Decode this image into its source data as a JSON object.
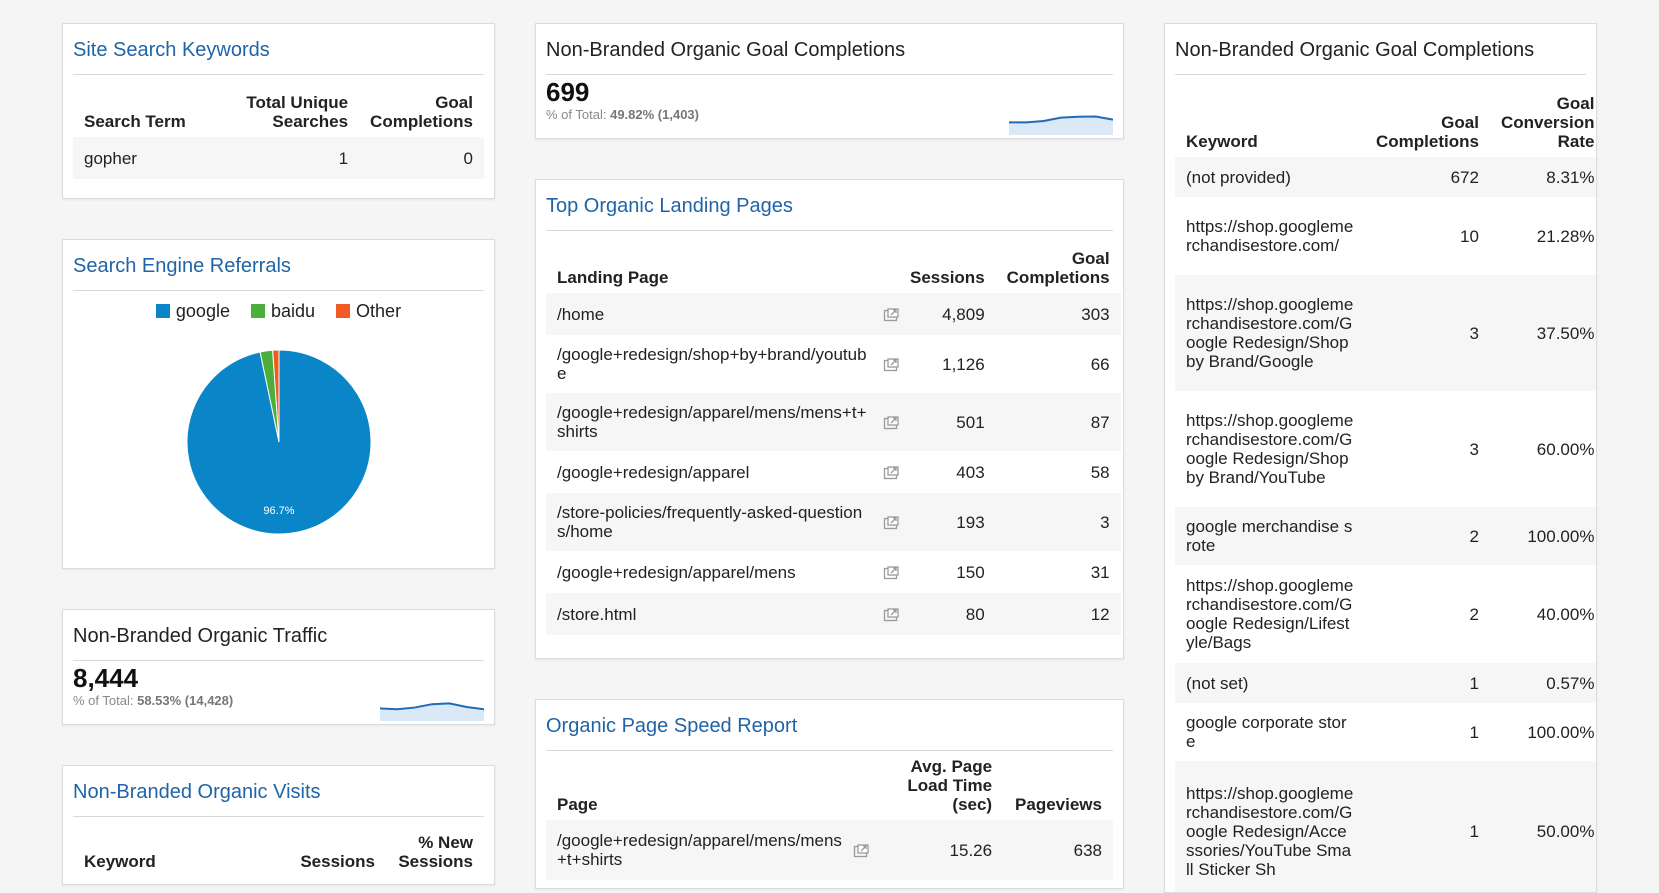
{
  "colors": {
    "title_blue": "#1f64a8",
    "google": "#0a86c8",
    "baidu": "#4caf3c",
    "other": "#f05a24",
    "spark_line": "#1f6cb5",
    "spark_fill": "#dbe8f6"
  },
  "site_search": {
    "title": "Site Search Keywords",
    "headers": [
      "Search Term",
      "Total Unique Searches",
      "Goal Completions"
    ],
    "rows": [
      {
        "term": "gopher",
        "unique": "1",
        "goals": "0"
      }
    ]
  },
  "search_engine": {
    "title": "Search Engine Referrals",
    "legend": [
      {
        "label": "google",
        "color": "#0a86c8"
      },
      {
        "label": "baidu",
        "color": "#4caf3c"
      },
      {
        "label": "Other",
        "color": "#f05a24"
      }
    ],
    "chart_data": {
      "type": "pie",
      "categories": [
        "google",
        "baidu",
        "Other"
      ],
      "values": [
        96.7,
        2.2,
        1.1
      ],
      "slice_labels": [
        "96.7%",
        "",
        ""
      ]
    }
  },
  "nb_traffic": {
    "title": "Non-Branded Organic Traffic",
    "value": "8,444",
    "pct_label": "% of Total:",
    "pct": "58.53% (14,428)",
    "spark": [
      0.45,
      0.42,
      0.48,
      0.6,
      0.63,
      0.5,
      0.42
    ]
  },
  "nb_visits": {
    "title": "Non-Branded Organic Visits",
    "headers": [
      "Keyword",
      "Sessions",
      "% New Sessions"
    ]
  },
  "nb_goal_small": {
    "title": "Non-Branded Organic Goal Completions",
    "value": "699",
    "pct_label": "% of Total:",
    "pct": "49.82% (1,403)",
    "spark": [
      0.45,
      0.45,
      0.5,
      0.62,
      0.65,
      0.66,
      0.55
    ]
  },
  "landing": {
    "title": "Top Organic Landing Pages",
    "headers": [
      "Landing Page",
      "Sessions",
      "Goal Completions"
    ],
    "rows": [
      {
        "page": "/home",
        "sessions": "4,809",
        "goals": "303"
      },
      {
        "page": "/google+redesign/shop+by+brand/youtube",
        "sessions": "1,126",
        "goals": "66"
      },
      {
        "page": "/google+redesign/apparel/mens/mens+t+shirts",
        "sessions": "501",
        "goals": "87"
      },
      {
        "page": "/google+redesign/apparel",
        "sessions": "403",
        "goals": "58"
      },
      {
        "page": "/store-policies/frequently-asked-questions/home",
        "sessions": "193",
        "goals": "3"
      },
      {
        "page": "/google+redesign/apparel/mens",
        "sessions": "150",
        "goals": "31"
      },
      {
        "page": "/store.html",
        "sessions": "80",
        "goals": "12"
      }
    ]
  },
  "speed": {
    "title": "Organic Page Speed Report",
    "headers": [
      "Page",
      "Avg. Page Load Time (sec)",
      "Pageviews"
    ],
    "rows": [
      {
        "page": "/google+redesign/apparel/mens/mens+t+shirts",
        "time": "15.26",
        "views": "638"
      }
    ]
  },
  "nb_goal_table": {
    "title": "Non-Branded Organic Goal Completions",
    "headers": [
      "Keyword",
      "Goal Completions",
      "Goal Conversion Rate"
    ],
    "rows": [
      {
        "kw": "(not provided)",
        "goals": "672",
        "rate": "8.31%"
      },
      {
        "kw": "https://shop.googlemerchandisestore.com/",
        "goals": "10",
        "rate": "21.28%"
      },
      {
        "kw": "https://shop.googlemerchandisestore.com/Google Redesign/Shop by Brand/Google",
        "goals": "3",
        "rate": "37.50%"
      },
      {
        "kw": "https://shop.googlemerchandisestore.com/Google Redesign/Shop by Brand/YouTube",
        "goals": "3",
        "rate": "60.00%"
      },
      {
        "kw": "google merchandise srote",
        "goals": "2",
        "rate": "100.00%"
      },
      {
        "kw": "https://shop.googlemerchandisestore.com/Google Redesign/Lifestyle/Bags",
        "goals": "2",
        "rate": "40.00%"
      },
      {
        "kw": "(not set)",
        "goals": "1",
        "rate": "0.57%"
      },
      {
        "kw": "google corporate store",
        "goals": "1",
        "rate": "100.00%"
      },
      {
        "kw": "https://shop.googlemerchandisestore.com/Google Redesign/Accessories/YouTube Small Sticker Sh",
        "goals": "1",
        "rate": "50.00%"
      }
    ]
  }
}
